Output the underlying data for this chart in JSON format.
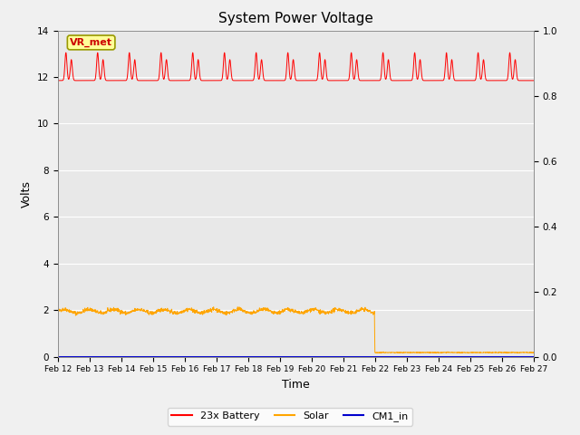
{
  "title": "System Power Voltage",
  "xlabel": "Time",
  "ylabel": "Volts",
  "ylim_left": [
    0,
    14
  ],
  "ylim_right": [
    0.0,
    1.0
  ],
  "yticks_left": [
    0,
    2,
    4,
    6,
    8,
    10,
    12,
    14
  ],
  "yticks_right": [
    0.0,
    0.2,
    0.4,
    0.6,
    0.8,
    1.0
  ],
  "xtick_labels": [
    "Feb 12",
    "Feb 13",
    "Feb 14",
    "Feb 15",
    "Feb 16",
    "Feb 17",
    "Feb 18",
    "Feb 19",
    "Feb 20",
    "Feb 21",
    "Feb 22",
    "Feb 23",
    "Feb 24",
    "Feb 25",
    "Feb 26",
    "Feb 27"
  ],
  "bg_color": "#e8e8e8",
  "fig_bg_color": "#f0f0f0",
  "legend_colors": [
    "#ff0000",
    "#ffa500",
    "#0000cd"
  ],
  "vr_met_label": "VR_met",
  "vr_met_bg": "#ffff99",
  "vr_met_border": "#999900",
  "battery_base": 11.85,
  "battery_peak1": 1.2,
  "battery_peak2": 0.9,
  "solar_base": 1.95,
  "solar_after": 0.18,
  "solar_cutoff_day": 10,
  "n_days": 15,
  "n_points": 2000
}
